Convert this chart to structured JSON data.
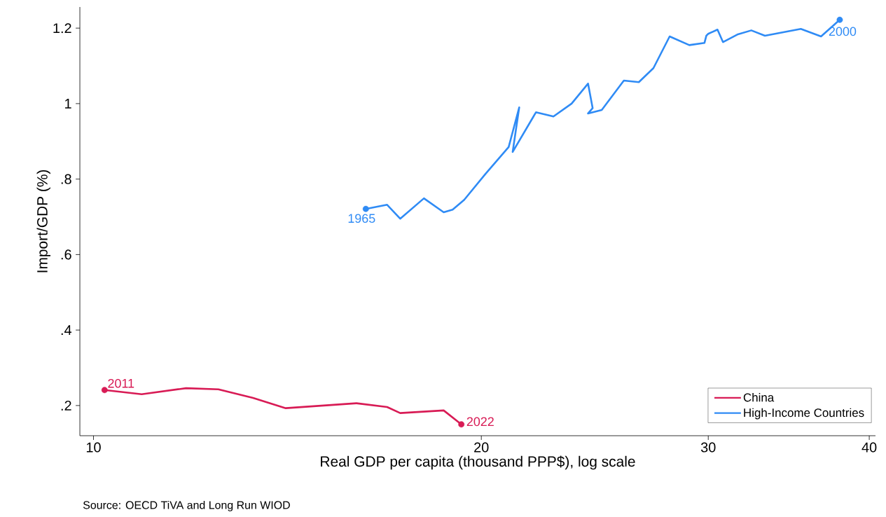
{
  "chart_data": {
    "type": "line",
    "xlabel": "Real GDP per capita (thousand PPP$), log scale",
    "ylabel": "Import/GDP (%)",
    "log": "x",
    "grid": false,
    "legend": "bottom right",
    "marker": "none",
    "line_style": "solid",
    "xlim": [
      9.76,
      40.45
    ],
    "ylim": [
      0.12,
      1.256
    ],
    "xticks": [
      10,
      20,
      30,
      40
    ],
    "yticks": [
      {
        "value": 0.2,
        "label": ".2"
      },
      {
        "value": 0.4,
        "label": ".4"
      },
      {
        "value": 0.6,
        "label": ".6"
      },
      {
        "value": 0.8,
        "label": ".8"
      },
      1,
      1.2
    ],
    "series": [
      {
        "name": "China",
        "color": "#d81b55",
        "x": [
          10.2,
          10.9,
          11.8,
          12.5,
          13.3,
          14.1,
          16.0,
          16.9,
          17.3,
          18.7,
          19.3
        ],
        "values": [
          0.241,
          0.23,
          0.246,
          0.243,
          0.22,
          0.193,
          0.206,
          0.196,
          0.18,
          0.187,
          0.15
        ]
      },
      {
        "name": "High-Income Countries",
        "color": "#2f8bf5",
        "x": [
          16.27,
          16.9,
          17.3,
          18.05,
          18.7,
          19.0,
          19.4,
          20.15,
          21.0,
          21.4,
          21.15,
          22.05,
          22.75,
          23.5,
          24.2,
          24.4,
          24.2,
          24.8,
          25.8,
          26.5,
          27.2,
          28.0,
          29.0,
          29.8,
          29.9,
          30.0,
          30.5,
          30.8,
          31.6,
          32.4,
          33.2,
          35.4,
          36.7,
          37.95
        ],
        "values": [
          0.721,
          0.732,
          0.695,
          0.749,
          0.712,
          0.719,
          0.745,
          0.814,
          0.885,
          0.99,
          0.872,
          0.977,
          0.966,
          1.0,
          1.053,
          0.988,
          0.974,
          0.983,
          1.061,
          1.057,
          1.094,
          1.178,
          1.155,
          1.161,
          1.18,
          1.185,
          1.196,
          1.163,
          1.183,
          1.194,
          1.18,
          1.198,
          1.178,
          1.222
        ]
      }
    ],
    "annotations": [
      {
        "text": "1965",
        "x": 16.27,
        "y": 0.721
      },
      {
        "text": "2000",
        "x": 37.95,
        "y": 1.222
      },
      {
        "text": "2011",
        "x": 10.2,
        "y": 0.241
      },
      {
        "text": "2022",
        "x": 19.3,
        "y": 0.15
      },
      "Source: OECD TiVA and Long Run WIOD"
    ]
  }
}
